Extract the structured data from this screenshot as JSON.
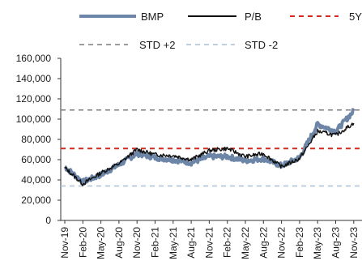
{
  "chart_data": {
    "type": "line",
    "legend_position": "top",
    "colors": {
      "bmp": "#6d86a8",
      "pb": "#111111",
      "avg5y": "#d42a1f",
      "std_plus2": "#7b7b7b",
      "std_minus2": "#a9bfd6"
    },
    "series": [
      {
        "name": "BMP",
        "id": "bmp",
        "x": [
          "Nov-19",
          "Feb-20",
          "May-20",
          "Aug-20",
          "Nov-20",
          "Feb-21",
          "May-21",
          "Aug-21",
          "Nov-21",
          "Feb-22",
          "May-22",
          "Aug-22",
          "Nov-22",
          "Feb-23",
          "May-23",
          "Aug-23",
          "Nov-23"
        ],
        "values": [
          53000,
          38000,
          45000,
          55000,
          66000,
          62000,
          60000,
          57000,
          63000,
          63000,
          59000,
          61000,
          54000,
          62000,
          95000,
          88000,
          108000
        ]
      },
      {
        "name": "P/B",
        "id": "pb",
        "x": [
          "Nov-19",
          "Feb-20",
          "May-20",
          "Aug-20",
          "Nov-20",
          "Feb-21",
          "May-21",
          "Aug-21",
          "Nov-21",
          "Feb-22",
          "May-22",
          "Aug-22",
          "Nov-22",
          "Feb-23",
          "May-23",
          "Aug-23",
          "Nov-23"
        ],
        "values": [
          52000,
          36000,
          47000,
          56000,
          70000,
          65000,
          64000,
          60000,
          69000,
          71000,
          63000,
          66000,
          53000,
          61000,
          88000,
          84000,
          96000
        ]
      },
      {
        "name": "5Y",
        "id": "avg5y",
        "constant": 71000
      },
      {
        "name": "STD +2",
        "id": "std_plus2",
        "constant": 109000
      },
      {
        "name": "STD -2",
        "id": "std_minus2",
        "constant": 34000
      }
    ],
    "ylim": [
      0,
      160000
    ],
    "yticks": [
      "0",
      "20,000",
      "40,000",
      "60,000",
      "80,000",
      "100,000",
      "120,000",
      "140,000",
      "160,000"
    ],
    "xticks": [
      "Nov-19",
      "Feb-20",
      "May-20",
      "Aug-20",
      "Nov-20",
      "Feb-21",
      "May-21",
      "Aug-21",
      "Nov-21",
      "Feb-22",
      "May-22",
      "Aug-22",
      "Nov-22",
      "Feb-23",
      "May-23",
      "Aug-23",
      "Nov-23"
    ],
    "xlabel": "",
    "ylabel": "",
    "title": "",
    "grid": false
  }
}
